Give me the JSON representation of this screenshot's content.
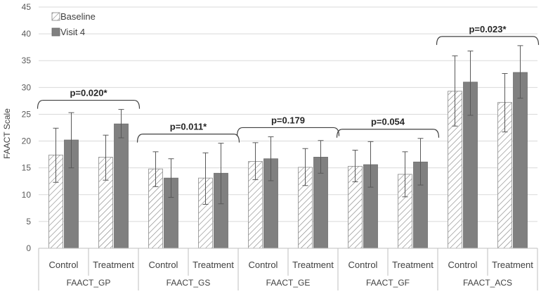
{
  "chart_data": {
    "type": "bar",
    "title": "",
    "ylabel": "FAACT Scale",
    "xlabel": "",
    "ylim": [
      0,
      45
    ],
    "yticks": [
      0,
      5,
      10,
      15,
      20,
      25,
      30,
      35,
      40,
      45
    ],
    "grid": true,
    "legend_position": "top-left",
    "groups": [
      {
        "name": "FAACT_GP",
        "categories": [
          "Control",
          "Treatment"
        ],
        "pvalue": "p=0.020*",
        "values": {
          "Baseline": [
            17.4,
            17.0
          ],
          "Visit 4": [
            20.2,
            23.2
          ]
        },
        "err_low": {
          "Baseline": [
            12.3,
            12.7
          ],
          "Visit 4": [
            15.0,
            20.6
          ]
        },
        "err_high": {
          "Baseline": [
            22.4,
            21.1
          ],
          "Visit 4": [
            25.3,
            25.9
          ]
        }
      },
      {
        "name": "FAACT_GS",
        "categories": [
          "Control",
          "Treatment"
        ],
        "pvalue": "p=0.011*",
        "values": {
          "Baseline": [
            14.8,
            13.1
          ],
          "Visit 4": [
            13.1,
            14.0
          ]
        },
        "err_low": {
          "Baseline": [
            11.5,
            8.2
          ],
          "Visit 4": [
            9.5,
            8.3
          ]
        },
        "err_high": {
          "Baseline": [
            18.0,
            17.8
          ],
          "Visit 4": [
            16.7,
            19.6
          ]
        }
      },
      {
        "name": "FAACT_GE",
        "categories": [
          "Control",
          "Treatment"
        ],
        "pvalue": "p=0.179",
        "values": {
          "Baseline": [
            16.2,
            15.1
          ],
          "Visit 4": [
            16.7,
            17.0
          ]
        },
        "err_low": {
          "Baseline": [
            12.8,
            11.7
          ],
          "Visit 4": [
            12.6,
            14.0
          ]
        },
        "err_high": {
          "Baseline": [
            19.7,
            18.6
          ],
          "Visit 4": [
            20.8,
            20.1
          ]
        }
      },
      {
        "name": "FAACT_GF",
        "categories": [
          "Control",
          "Treatment"
        ],
        "pvalue": "p=0.054",
        "values": {
          "Baseline": [
            15.3,
            13.8
          ],
          "Visit 4": [
            15.6,
            16.1
          ]
        },
        "err_low": {
          "Baseline": [
            12.4,
            9.6
          ],
          "Visit 4": [
            11.4,
            11.8
          ]
        },
        "err_high": {
          "Baseline": [
            18.3,
            18.0
          ],
          "Visit 4": [
            19.9,
            20.5
          ]
        }
      },
      {
        "name": "FAACT_ACS",
        "categories": [
          "Control",
          "Treatment"
        ],
        "pvalue": "p=0.023*",
        "values": {
          "Baseline": [
            29.3,
            27.2
          ],
          "Visit 4": [
            31.0,
            32.8
          ]
        },
        "err_low": {
          "Baseline": [
            22.8,
            21.7
          ],
          "Visit 4": [
            24.8,
            28.0
          ]
        },
        "err_high": {
          "Baseline": [
            35.9,
            32.6
          ],
          "Visit 4": [
            36.8,
            37.8
          ]
        }
      }
    ],
    "series": [
      {
        "name": "Baseline",
        "style": "hatched",
        "color": "#ffffff",
        "hatch_color": "#7f7f7f"
      },
      {
        "name": "Visit 4",
        "style": "solid",
        "color": "#808080"
      }
    ]
  }
}
